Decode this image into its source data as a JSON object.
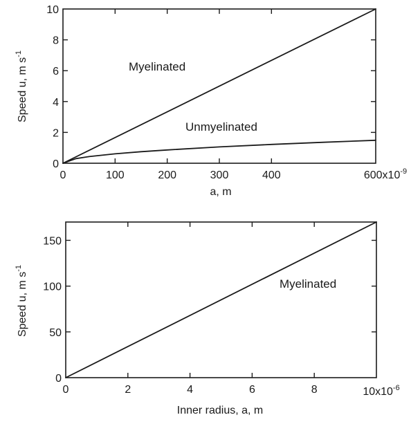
{
  "chart_data": [
    {
      "type": "line",
      "xlabel": "a, m",
      "ylabel_main": "Speed u,  m s",
      "ylabel_exp": "-1",
      "x_ticks": [
        "0",
        "100",
        "200",
        "300",
        "400"
      ],
      "x_tick_values": [
        0,
        100,
        200,
        300,
        400
      ],
      "x_end_label_main": "600x10",
      "x_end_label_exp": "-9",
      "y_ticks": [
        "0",
        "2",
        "4",
        "6",
        "8",
        "10"
      ],
      "y_tick_values": [
        0,
        2,
        4,
        6,
        8,
        10
      ],
      "xlim": [
        0,
        600
      ],
      "ylim": [
        0,
        10
      ],
      "x_unit_multiplier": "1e-9",
      "series": [
        {
          "name": "Myelinated",
          "x": [
            0,
            600
          ],
          "y": [
            0,
            10
          ]
        },
        {
          "name": "Unmyelinated",
          "x": [
            0,
            25,
            50,
            100,
            150,
            200,
            300,
            400,
            500,
            600
          ],
          "y": [
            0,
            0.3,
            0.43,
            0.61,
            0.75,
            0.86,
            1.06,
            1.22,
            1.36,
            1.49
          ]
        }
      ],
      "annotations": [
        {
          "text": "Myelinated",
          "x": 220,
          "y": 6.3
        },
        {
          "text": "Unmyelinated",
          "x": 330,
          "y": 2.5
        }
      ]
    },
    {
      "type": "line",
      "xlabel": "Inner radius, a, m",
      "ylabel_main": "Speed u, m s",
      "ylabel_exp": "-1",
      "x_ticks": [
        "0",
        "2",
        "4",
        "6",
        "8"
      ],
      "x_tick_values": [
        0,
        2,
        4,
        6,
        8
      ],
      "x_end_label_main": "10x10",
      "x_end_label_exp": "-6",
      "y_ticks": [
        "0",
        "50",
        "100",
        "150"
      ],
      "y_tick_values": [
        0,
        50,
        100,
        150
      ],
      "xlim": [
        0,
        10
      ],
      "ylim": [
        0,
        170
      ],
      "x_unit_multiplier": "1e-6",
      "series": [
        {
          "name": "Myelinated",
          "x": [
            0,
            10
          ],
          "y": [
            0,
            170
          ]
        }
      ],
      "annotations": [
        {
          "text": "Myelinated",
          "x": 8.1,
          "y": 102
        }
      ]
    }
  ]
}
